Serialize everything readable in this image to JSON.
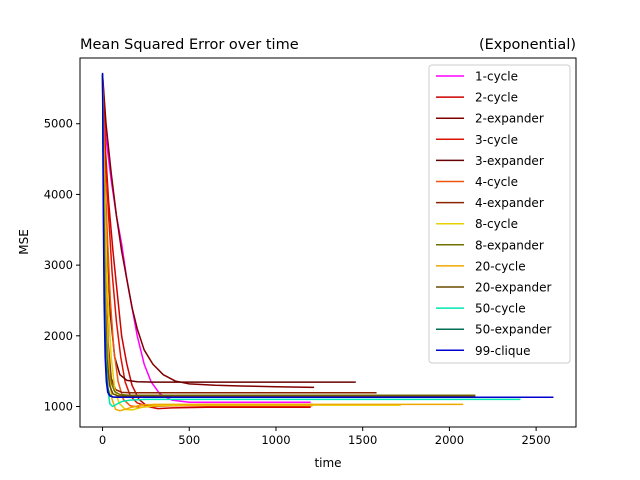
{
  "chart_data": {
    "type": "line",
    "title": "Mean Squared Error over time",
    "subtitle": "(Exponential)",
    "xlabel": "time",
    "ylabel": "MSE",
    "xlim": [
      -130,
      2730
    ],
    "ylim": [
      710,
      5930
    ],
    "xticks": [
      0,
      500,
      1000,
      1500,
      2000,
      2500
    ],
    "yticks": [
      1000,
      2000,
      3000,
      4000,
      5000
    ],
    "grid": false,
    "legend_position": "top-right",
    "series": [
      {
        "name": "1-cycle",
        "color": "#ff00ff",
        "x": [
          0,
          20,
          50,
          80,
          110,
          140,
          170,
          200,
          240,
          280,
          330,
          400,
          500,
          650,
          900,
          1200
        ],
        "y": [
          5700,
          4800,
          4200,
          3700,
          3300,
          2800,
          2400,
          2000,
          1600,
          1350,
          1180,
          1090,
          1060,
          1060,
          1060,
          1060
        ]
      },
      {
        "name": "2-cycle",
        "color": "#cc0000",
        "x": [
          0,
          15,
          35,
          60,
          85,
          110,
          140,
          170,
          210,
          260,
          320,
          400,
          600,
          900,
          1200
        ],
        "y": [
          5700,
          4700,
          3900,
          3200,
          2600,
          2000,
          1600,
          1300,
          1100,
          1000,
          970,
          980,
          990,
          990,
          990
        ]
      },
      {
        "name": "2-expander",
        "color": "#800000",
        "x": [
          0,
          20,
          50,
          80,
          110,
          140,
          170,
          200,
          240,
          290,
          350,
          420,
          500,
          650,
          800,
          1000,
          1220
        ],
        "y": [
          5700,
          5000,
          4300,
          3700,
          3200,
          2800,
          2400,
          2100,
          1800,
          1600,
          1450,
          1360,
          1320,
          1300,
          1290,
          1280,
          1270
        ]
      },
      {
        "name": "3-cycle",
        "color": "#dd1100",
        "x": [
          0,
          15,
          35,
          55,
          80,
          105,
          130,
          160,
          200,
          250,
          320,
          400,
          600,
          900,
          1210
        ],
        "y": [
          5700,
          4600,
          3700,
          2900,
          2200,
          1700,
          1350,
          1150,
          1050,
          1010,
          1010,
          1020,
          1030,
          1030,
          1030
        ]
      },
      {
        "name": "3-expander",
        "color": "#660000",
        "x": [
          0,
          10,
          25,
          45,
          70,
          100,
          140,
          200,
          300,
          500,
          800,
          1100,
          1460
        ],
        "y": [
          5700,
          4600,
          3300,
          2300,
          1700,
          1450,
          1370,
          1350,
          1345,
          1345,
          1345,
          1345,
          1345
        ]
      },
      {
        "name": "4-cycle",
        "color": "#ee5511",
        "x": [
          0,
          12,
          28,
          45,
          65,
          90,
          120,
          160,
          210,
          280,
          400,
          700,
          1000,
          1210
        ],
        "y": [
          5700,
          4400,
          3400,
          2500,
          1800,
          1350,
          1100,
          1010,
          990,
          1000,
          1010,
          1010,
          1010,
          1010
        ]
      },
      {
        "name": "4-expander",
        "color": "#8b2500",
        "x": [
          0,
          8,
          18,
          32,
          50,
          75,
          110,
          160,
          250,
          500,
          900,
          1300,
          1580
        ],
        "y": [
          5700,
          4300,
          2900,
          1900,
          1400,
          1240,
          1200,
          1195,
          1195,
          1195,
          1195,
          1195,
          1195
        ]
      },
      {
        "name": "8-cycle",
        "color": "#e6d000",
        "x": [
          0,
          10,
          22,
          35,
          50,
          70,
          95,
          130,
          170,
          230,
          300,
          500,
          900,
          1300,
          1720
        ],
        "y": [
          5700,
          4300,
          3200,
          2300,
          1700,
          1250,
          1050,
          960,
          950,
          990,
          1010,
          1020,
          1020,
          1020,
          1020
        ]
      },
      {
        "name": "8-expander",
        "color": "#707000",
        "x": [
          0,
          8,
          18,
          30,
          48,
          70,
          100,
          150,
          300,
          700,
          1200,
          1700,
          2150
        ],
        "y": [
          5700,
          4200,
          2800,
          1800,
          1350,
          1210,
          1170,
          1160,
          1160,
          1160,
          1160,
          1160,
          1160
        ]
      },
      {
        "name": "20-cycle",
        "color": "#f0a800",
        "x": [
          0,
          8,
          18,
          28,
          40,
          55,
          75,
          100,
          130,
          170,
          220,
          300,
          500,
          900,
          1400,
          1800,
          2080
        ],
        "y": [
          5700,
          4100,
          2900,
          2000,
          1400,
          1100,
          960,
          940,
          960,
          990,
          1020,
          1030,
          1030,
          1030,
          1030,
          1030,
          1030
        ]
      },
      {
        "name": "20-expander",
        "color": "#6b4a00",
        "x": [
          0,
          6,
          14,
          25,
          40,
          60,
          90,
          140,
          300,
          800,
          1400,
          2000,
          2150
        ],
        "y": [
          5700,
          4000,
          2600,
          1700,
          1300,
          1180,
          1150,
          1145,
          1145,
          1145,
          1145,
          1145,
          1145
        ]
      },
      {
        "name": "50-cycle",
        "color": "#00e8b0",
        "x": [
          0,
          6,
          12,
          20,
          30,
          42,
          58,
          80,
          110,
          160,
          250,
          500,
          1000,
          1600,
          2080,
          2410
        ],
        "y": [
          5700,
          3800,
          2500,
          1700,
          1250,
          1040,
          1000,
          1030,
          1070,
          1090,
          1100,
          1100,
          1100,
          1100,
          1100,
          1100
        ]
      },
      {
        "name": "50-expander",
        "color": "#006e55",
        "x": [
          0,
          5,
          11,
          18,
          28,
          40,
          58,
          85,
          150,
          400,
          900,
          1500,
          2000,
          2410
        ],
        "y": [
          5700,
          3900,
          2500,
          1650,
          1300,
          1170,
          1135,
          1130,
          1130,
          1130,
          1130,
          1130,
          1130,
          1130
        ]
      },
      {
        "name": "99-clique",
        "color": "#0000cc",
        "x": [
          0,
          4,
          9,
          15,
          22,
          30,
          42,
          60,
          90,
          150,
          400,
          1000,
          1600,
          2200,
          2600
        ],
        "y": [
          5720,
          3900,
          2500,
          1700,
          1350,
          1200,
          1150,
          1135,
          1130,
          1130,
          1130,
          1130,
          1130,
          1130,
          1130
        ]
      }
    ]
  }
}
